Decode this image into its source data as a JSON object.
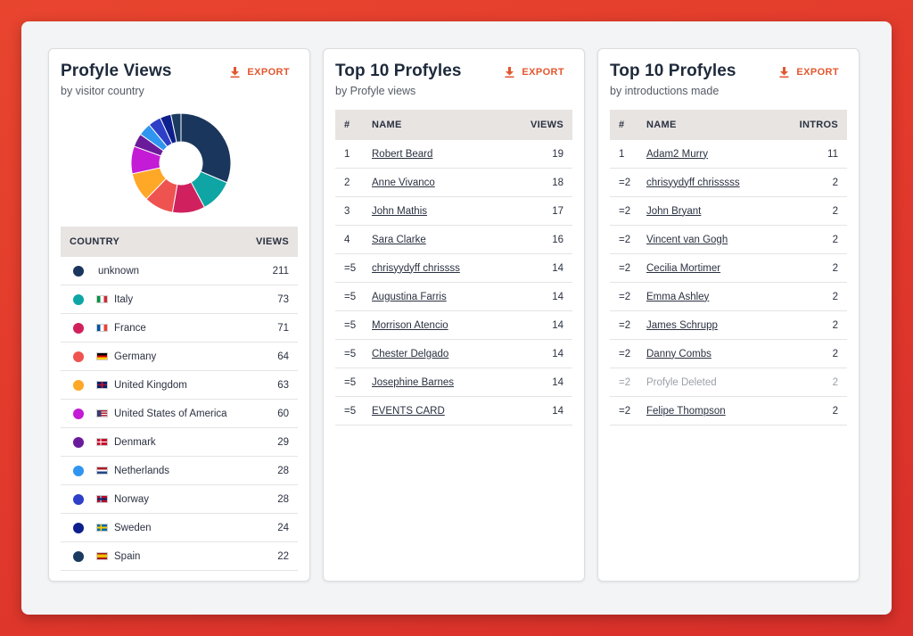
{
  "cards": {
    "views": {
      "title": "Profyle Views",
      "subtitle": "by visitor country",
      "export_label": "EXPORT",
      "col_country": "COUNTRY",
      "col_views": "VIEWS",
      "rows": [
        {
          "country": "unknown",
          "views": "211",
          "color": "#1b365d",
          "flag": ""
        },
        {
          "country": "Italy",
          "views": "73",
          "color": "#0fa5a5",
          "flag": "it"
        },
        {
          "country": "France",
          "views": "71",
          "color": "#d0215e",
          "flag": "fr"
        },
        {
          "country": "Germany",
          "views": "64",
          "color": "#ef5350",
          "flag": "de"
        },
        {
          "country": "United Kingdom",
          "views": "63",
          "color": "#ffa726",
          "flag": "gb"
        },
        {
          "country": "United States of America",
          "views": "60",
          "color": "#c41bd6",
          "flag": "us"
        },
        {
          "country": "Denmark",
          "views": "29",
          "color": "#6a1b9a",
          "flag": "dk"
        },
        {
          "country": "Netherlands",
          "views": "28",
          "color": "#2f95f0",
          "flag": "nl"
        },
        {
          "country": "Norway",
          "views": "28",
          "color": "#2e3fc8",
          "flag": "no"
        },
        {
          "country": "Sweden",
          "views": "24",
          "color": "#0d1f8c",
          "flag": "se"
        },
        {
          "country": "Spain",
          "views": "22",
          "color": "#1b3a5f",
          "flag": "es"
        }
      ]
    },
    "top_views": {
      "title": "Top 10 Profyles",
      "subtitle": "by Profyle views",
      "export_label": "EXPORT",
      "col_rank": "#",
      "col_name": "NAME",
      "col_value": "VIEWS",
      "rows": [
        {
          "rank": "1",
          "name": "Robert Beard",
          "value": "19"
        },
        {
          "rank": "2",
          "name": "Anne Vivanco",
          "value": "18"
        },
        {
          "rank": "3",
          "name": "John Mathis",
          "value": "17"
        },
        {
          "rank": "4",
          "name": "Sara Clarke",
          "value": "16"
        },
        {
          "rank": "=5",
          "name": "chrisyydyff chrissss",
          "value": "14"
        },
        {
          "rank": "=5",
          "name": "Augustina Farris",
          "value": "14"
        },
        {
          "rank": "=5",
          "name": "Morrison Atencio",
          "value": "14"
        },
        {
          "rank": "=5",
          "name": "Chester Delgado",
          "value": "14"
        },
        {
          "rank": "=5",
          "name": "Josephine Barnes",
          "value": "14"
        },
        {
          "rank": "=5",
          "name": "EVENTS CARD",
          "value": "14"
        }
      ]
    },
    "top_intros": {
      "title": "Top 10 Profyles",
      "subtitle": "by introductions made",
      "export_label": "EXPORT",
      "col_rank": "#",
      "col_name": "NAME",
      "col_value": "INTROS",
      "rows": [
        {
          "rank": "1",
          "name": "Adam2 Murry",
          "value": "11",
          "muted": false
        },
        {
          "rank": "=2",
          "name": "chrisyydyff chrisssss",
          "value": "2",
          "muted": false
        },
        {
          "rank": "=2",
          "name": "John Bryant",
          "value": "2",
          "muted": false
        },
        {
          "rank": "=2",
          "name": "Vincent van Gogh",
          "value": "2",
          "muted": false
        },
        {
          "rank": "=2",
          "name": "Cecilia Mortimer",
          "value": "2",
          "muted": false
        },
        {
          "rank": "=2",
          "name": "Emma Ashley",
          "value": "2",
          "muted": false
        },
        {
          "rank": "=2",
          "name": "James Schrupp",
          "value": "2",
          "muted": false
        },
        {
          "rank": "=2",
          "name": "Danny Combs",
          "value": "2",
          "muted": false
        },
        {
          "rank": "=2",
          "name": "Profyle Deleted",
          "value": "2",
          "muted": true
        },
        {
          "rank": "=2",
          "name": "Felipe Thompson",
          "value": "2",
          "muted": false
        }
      ]
    }
  },
  "chart_data": {
    "type": "pie",
    "donut": true,
    "categories": [
      "unknown",
      "Italy",
      "France",
      "Germany",
      "United Kingdom",
      "United States of America",
      "Denmark",
      "Netherlands",
      "Norway",
      "Sweden",
      "Spain"
    ],
    "values": [
      211,
      73,
      71,
      64,
      63,
      60,
      29,
      28,
      28,
      24,
      22
    ],
    "colors": [
      "#1b365d",
      "#0fa5a5",
      "#d0215e",
      "#ef5350",
      "#ffa726",
      "#c41bd6",
      "#6a1b9a",
      "#2f95f0",
      "#2e3fc8",
      "#0d1f8c",
      "#1b3a5f"
    ],
    "legend": "table-below"
  }
}
